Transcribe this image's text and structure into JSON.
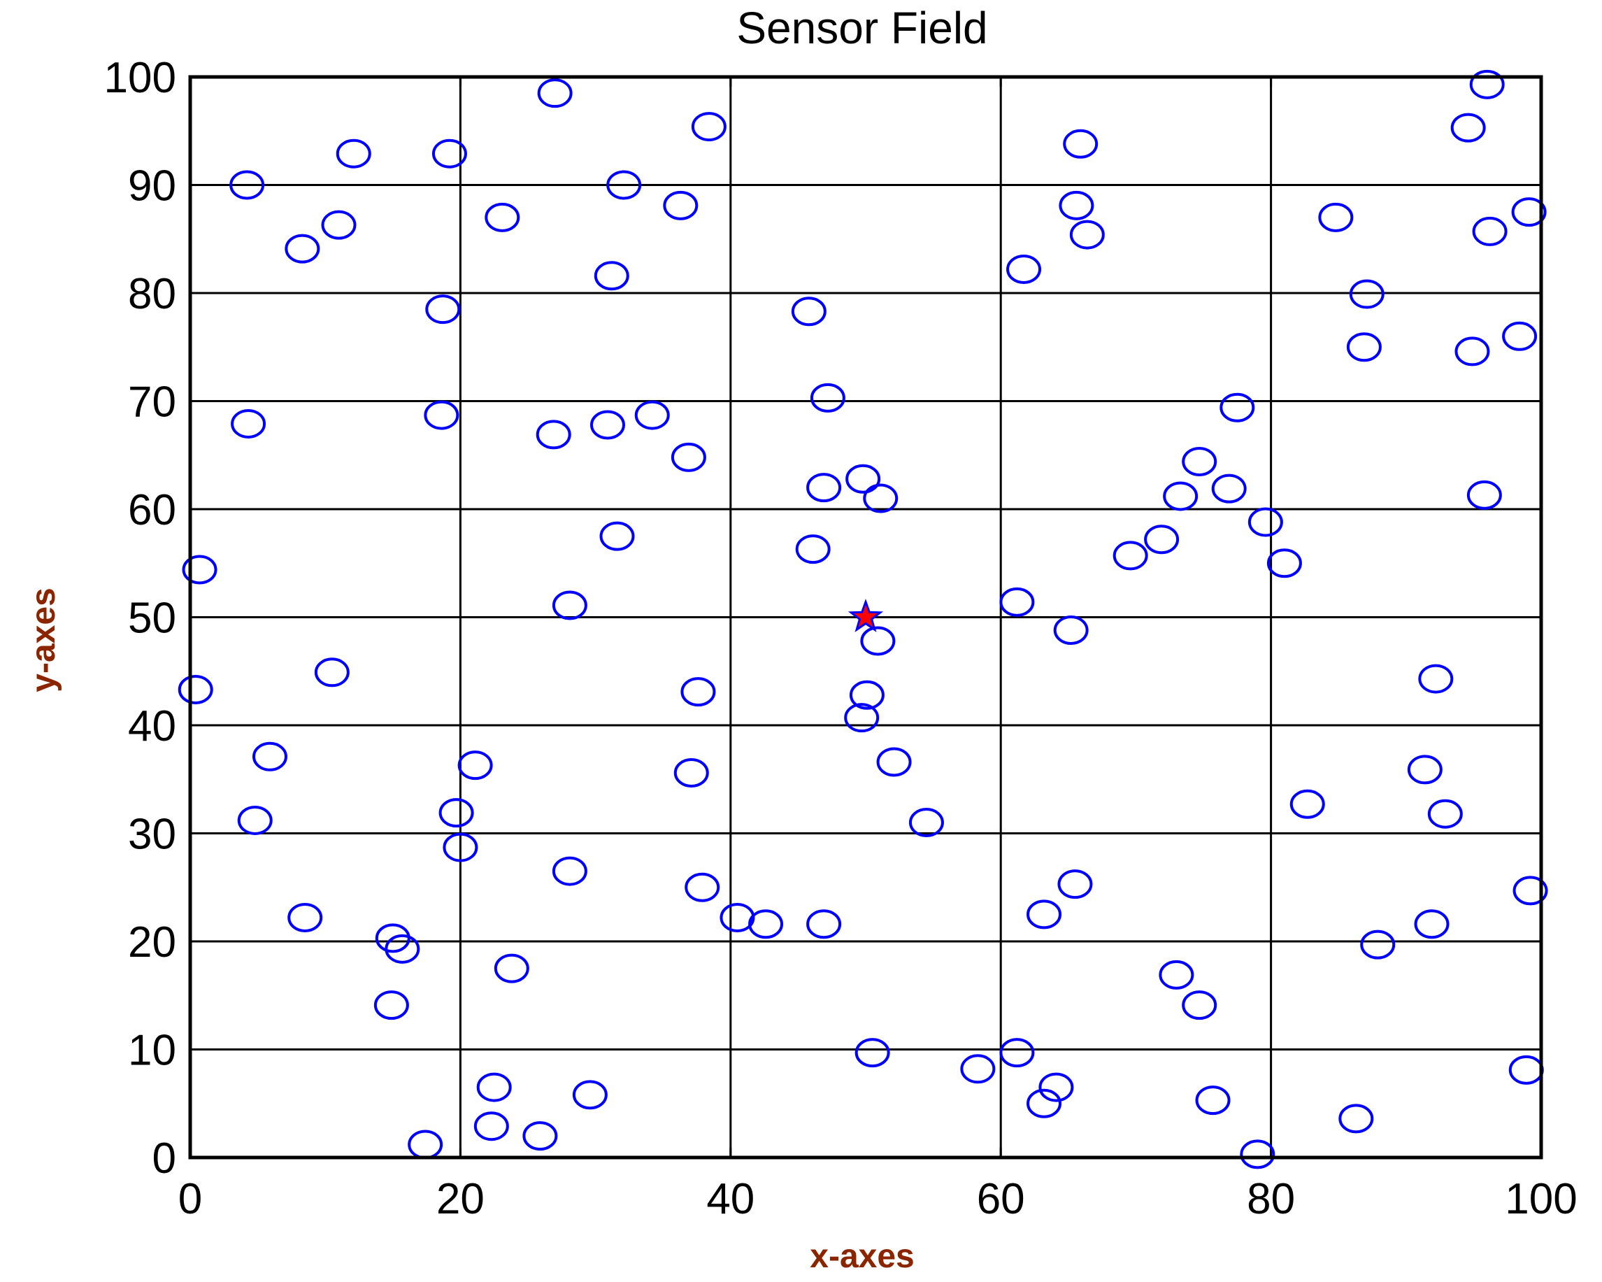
{
  "chart_data": {
    "type": "scatter",
    "title": "Sensor Field",
    "xlabel": "x-axes",
    "ylabel": "y-axes",
    "xlim": [
      0,
      100
    ],
    "ylim": [
      0,
      100
    ],
    "xticks": [
      "0",
      "20",
      "40",
      "60",
      "80",
      "100"
    ],
    "yticks": [
      "0",
      "10",
      "20",
      "30",
      "40",
      "50",
      "60",
      "70",
      "80",
      "90",
      "100"
    ],
    "grid": true,
    "series": [
      {
        "marker": "circle-open",
        "color": "#0000ff",
        "points": [
          [
            4.2,
            90.0
          ],
          [
            8.3,
            84.1
          ],
          [
            11.0,
            86.3
          ],
          [
            12.1,
            92.9
          ],
          [
            18.7,
            78.5
          ],
          [
            19.2,
            92.9
          ],
          [
            23.1,
            87.0
          ],
          [
            27.0,
            98.5
          ],
          [
            31.2,
            81.6
          ],
          [
            32.1,
            90.0
          ],
          [
            36.3,
            88.1
          ],
          [
            38.4,
            95.4
          ],
          [
            4.3,
            67.9
          ],
          [
            18.6,
            68.7
          ],
          [
            26.9,
            66.9
          ],
          [
            30.9,
            67.8
          ],
          [
            34.2,
            68.7
          ],
          [
            36.9,
            64.8
          ],
          [
            0.7,
            54.4
          ],
          [
            31.6,
            57.5
          ],
          [
            28.1,
            51.1
          ],
          [
            0.4,
            43.3
          ],
          [
            10.5,
            44.9
          ],
          [
            37.6,
            43.1
          ],
          [
            5.9,
            37.1
          ],
          [
            4.8,
            31.2
          ],
          [
            21.1,
            36.3
          ],
          [
            19.7,
            31.9
          ],
          [
            20.0,
            28.7
          ],
          [
            37.1,
            35.6
          ],
          [
            8.5,
            22.2
          ],
          [
            15.0,
            20.3
          ],
          [
            15.7,
            19.3
          ],
          [
            14.9,
            14.1
          ],
          [
            23.8,
            17.5
          ],
          [
            28.1,
            26.5
          ],
          [
            37.9,
            25.0
          ],
          [
            40.5,
            22.2
          ],
          [
            42.6,
            21.6
          ],
          [
            17.4,
            1.2
          ],
          [
            22.5,
            6.5
          ],
          [
            22.3,
            2.9
          ],
          [
            25.9,
            2.0
          ],
          [
            29.6,
            5.8
          ],
          [
            45.8,
            78.3
          ],
          [
            47.2,
            70.3
          ],
          [
            46.9,
            62.0
          ],
          [
            49.8,
            62.8
          ],
          [
            51.1,
            61.0
          ],
          [
            46.1,
            56.3
          ],
          [
            50.9,
            47.8
          ],
          [
            50.1,
            42.8
          ],
          [
            49.7,
            40.7
          ],
          [
            52.1,
            36.6
          ],
          [
            54.5,
            31.0
          ],
          [
            46.9,
            21.6
          ],
          [
            50.5,
            9.7
          ],
          [
            65.9,
            93.8
          ],
          [
            65.6,
            88.1
          ],
          [
            66.4,
            85.4
          ],
          [
            61.7,
            82.2
          ],
          [
            61.2,
            51.4
          ],
          [
            65.2,
            48.8
          ],
          [
            63.2,
            22.5
          ],
          [
            65.5,
            25.3
          ],
          [
            61.2,
            9.7
          ],
          [
            58.3,
            8.2
          ],
          [
            64.1,
            6.5
          ],
          [
            63.2,
            5.0
          ],
          [
            69.6,
            55.7
          ],
          [
            71.9,
            57.2
          ],
          [
            73.3,
            61.2
          ],
          [
            74.7,
            64.4
          ],
          [
            76.9,
            61.9
          ],
          [
            77.5,
            69.4
          ],
          [
            79.6,
            58.8
          ],
          [
            81.0,
            55.0
          ],
          [
            73.0,
            16.9
          ],
          [
            74.7,
            14.1
          ],
          [
            75.7,
            5.3
          ],
          [
            79.0,
            0.3
          ],
          [
            84.8,
            87.0
          ],
          [
            87.1,
            79.9
          ],
          [
            86.9,
            75.0
          ],
          [
            82.7,
            32.7
          ],
          [
            87.9,
            19.7
          ],
          [
            86.3,
            3.6
          ],
          [
            94.6,
            95.3
          ],
          [
            96.0,
            99.3
          ],
          [
            96.2,
            85.7
          ],
          [
            99.1,
            87.5
          ],
          [
            98.4,
            76.0
          ],
          [
            94.9,
            74.6
          ],
          [
            95.8,
            61.3
          ],
          [
            92.2,
            44.3
          ],
          [
            91.4,
            35.9
          ],
          [
            92.9,
            31.8
          ],
          [
            91.9,
            21.6
          ],
          [
            99.2,
            24.7
          ],
          [
            98.9,
            8.1
          ]
        ]
      },
      {
        "marker": "star",
        "color": "#ff0000",
        "points": [
          [
            50.0,
            50.0
          ]
        ]
      }
    ]
  }
}
